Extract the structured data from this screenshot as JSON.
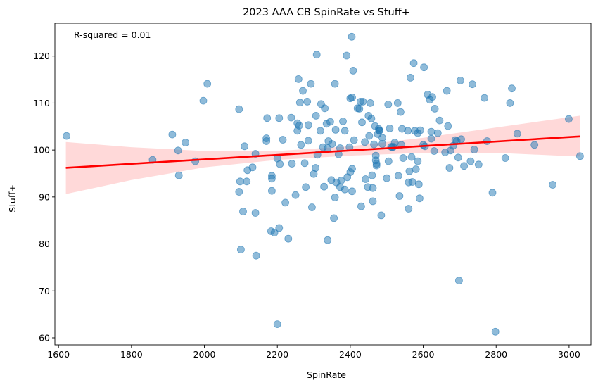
{
  "chart_data": {
    "type": "scatter",
    "title": "2023 AAA CB SpinRate vs Stuff+",
    "xlabel": "SpinRate",
    "ylabel": "Stuff+",
    "xlim": [
      1590,
      3060
    ],
    "ylim": [
      58.5,
      127
    ],
    "xticks": [
      1600,
      1800,
      2000,
      2200,
      2400,
      2600,
      2800,
      3000
    ],
    "yticks": [
      60,
      70,
      80,
      90,
      100,
      110,
      120
    ],
    "annotation": "R-squared = 0.01",
    "colors": {
      "points": "#1f77b4",
      "fit_line": "#ff0000",
      "ci_band": "#ff0000"
    },
    "regression": {
      "x": [
        1620,
        3030
      ],
      "y": [
        96.2,
        102.9
      ]
    },
    "confidence_band": {
      "x": [
        1620,
        1800,
        2000,
        2200,
        2400,
        2600,
        2800,
        3030
      ],
      "lower": [
        90.6,
        93.6,
        96.3,
        97.9,
        98.8,
        99.4,
        99.4,
        98.6
      ],
      "upper": [
        101.7,
        100.6,
        99.8,
        99.8,
        100.8,
        102.6,
        104.8,
        107.3
      ]
    },
    "points": [
      [
        1622,
        103
      ],
      [
        1858,
        97.9
      ],
      [
        1912,
        103.3
      ],
      [
        1928,
        99.9
      ],
      [
        1930,
        94.6
      ],
      [
        1948,
        101.6
      ],
      [
        1975,
        97.6
      ],
      [
        1997,
        110.5
      ],
      [
        2008,
        114.1
      ],
      [
        2095,
        108.7
      ],
      [
        2095,
        91.1
      ],
      [
        2098,
        93.3
      ],
      [
        2100,
        78.8
      ],
      [
        2106,
        86.9
      ],
      [
        2110,
        100.8
      ],
      [
        2116,
        93.3
      ],
      [
        2118,
        95.7
      ],
      [
        2132,
        96.3
      ],
      [
        2140,
        86.6
      ],
      [
        2140,
        99.2
      ],
      [
        2142,
        77.5
      ],
      [
        2170,
        102.5
      ],
      [
        2170,
        101.9
      ],
      [
        2172,
        106.8
      ],
      [
        2183,
        82.7
      ],
      [
        2185,
        94.5
      ],
      [
        2185,
        91.3
      ],
      [
        2185,
        93.9
      ],
      [
        2192,
        82.4
      ],
      [
        2200,
        98.2
      ],
      [
        2205,
        106.8
      ],
      [
        2205,
        83.4
      ],
      [
        2207,
        97
      ],
      [
        2200,
        62.9
      ],
      [
        2215,
        102.2
      ],
      [
        2222,
        88.8
      ],
      [
        2230,
        81.1
      ],
      [
        2238,
        106.9
      ],
      [
        2240,
        97.1
      ],
      [
        2250,
        90.4
      ],
      [
        2255,
        104.1
      ],
      [
        2255,
        105.7
      ],
      [
        2258,
        115.1
      ],
      [
        2260,
        105.2
      ],
      [
        2262,
        110.1
      ],
      [
        2265,
        101.1
      ],
      [
        2270,
        112.6
      ],
      [
        2275,
        97.2
      ],
      [
        2278,
        92.1
      ],
      [
        2282,
        110.3
      ],
      [
        2285,
        102
      ],
      [
        2285,
        105.3
      ],
      [
        2292,
        114.1
      ],
      [
        2295,
        87.8
      ],
      [
        2300,
        94.9
      ],
      [
        2305,
        96.2
      ],
      [
        2306,
        107.3
      ],
      [
        2308,
        120.3
      ],
      [
        2310,
        99
      ],
      [
        2318,
        104.1
      ],
      [
        2320,
        109.8
      ],
      [
        2325,
        100.6
      ],
      [
        2328,
        92.2
      ],
      [
        2330,
        108.9
      ],
      [
        2335,
        105.6
      ],
      [
        2338,
        80.8
      ],
      [
        2338,
        100.4
      ],
      [
        2340,
        101.9
      ],
      [
        2345,
        106
      ],
      [
        2348,
        93.6
      ],
      [
        2350,
        101.3
      ],
      [
        2355,
        85.5
      ],
      [
        2358,
        114.1
      ],
      [
        2358,
        89.9
      ],
      [
        2360,
        104.3
      ],
      [
        2362,
        93.1
      ],
      [
        2368,
        99.1
      ],
      [
        2372,
        100.4
      ],
      [
        2372,
        92.1
      ],
      [
        2375,
        93.5
      ],
      [
        2380,
        106.1
      ],
      [
        2385,
        104.1
      ],
      [
        2385,
        91.6
      ],
      [
        2390,
        120.1
      ],
      [
        2392,
        94.2
      ],
      [
        2398,
        100.6
      ],
      [
        2400,
        111
      ],
      [
        2400,
        95.3
      ],
      [
        2404,
        124.1
      ],
      [
        2405,
        111.2
      ],
      [
        2405,
        96
      ],
      [
        2405,
        91.2
      ],
      [
        2408,
        116.9
      ],
      [
        2410,
        102.1
      ],
      [
        2420,
        108.9
      ],
      [
        2425,
        108.8
      ],
      [
        2428,
        110.3
      ],
      [
        2430,
        88
      ],
      [
        2432,
        105.9
      ],
      [
        2435,
        110.3
      ],
      [
        2440,
        101.7
      ],
      [
        2442,
        93.8
      ],
      [
        2448,
        92.1
      ],
      [
        2450,
        107.3
      ],
      [
        2452,
        103
      ],
      [
        2455,
        110
      ],
      [
        2458,
        106.7
      ],
      [
        2460,
        94.6
      ],
      [
        2462,
        91.9
      ],
      [
        2462,
        89.1
      ],
      [
        2465,
        101.2
      ],
      [
        2468,
        105.1
      ],
      [
        2470,
        98.8
      ],
      [
        2470,
        97.8
      ],
      [
        2472,
        96.7
      ],
      [
        2472,
        97.1
      ],
      [
        2475,
        103.4
      ],
      [
        2478,
        104.5
      ],
      [
        2480,
        104.1
      ],
      [
        2480,
        104.2
      ],
      [
        2485,
        86.1
      ],
      [
        2488,
        102.6
      ],
      [
        2488,
        101.3
      ],
      [
        2500,
        94
      ],
      [
        2504,
        109.7
      ],
      [
        2505,
        97.6
      ],
      [
        2508,
        104.6
      ],
      [
        2512,
        100.7
      ],
      [
        2515,
        100.6
      ],
      [
        2518,
        100.7
      ],
      [
        2522,
        101.6
      ],
      [
        2530,
        110
      ],
      [
        2532,
        94.5
      ],
      [
        2535,
        90.2
      ],
      [
        2538,
        108.1
      ],
      [
        2540,
        101.1
      ],
      [
        2542,
        104.5
      ],
      [
        2545,
        98.3
      ],
      [
        2558,
        104.1
      ],
      [
        2560,
        93.1
      ],
      [
        2560,
        87.5
      ],
      [
        2562,
        95.5
      ],
      [
        2565,
        115.4
      ],
      [
        2568,
        98.5
      ],
      [
        2570,
        93.2
      ],
      [
        2574,
        118.5
      ],
      [
        2577,
        104.1
      ],
      [
        2580,
        95.9
      ],
      [
        2585,
        103.6
      ],
      [
        2585,
        97.6
      ],
      [
        2588,
        92.7
      ],
      [
        2590,
        89.7
      ],
      [
        2592,
        104.2
      ],
      [
        2600,
        101.1
      ],
      [
        2602,
        117.6
      ],
      [
        2605,
        100.8
      ],
      [
        2612,
        111.8
      ],
      [
        2618,
        110.7
      ],
      [
        2622,
        103.9
      ],
      [
        2622,
        102.4
      ],
      [
        2625,
        111.3
      ],
      [
        2630,
        99.8
      ],
      [
        2632,
        108.8
      ],
      [
        2640,
        103.6
      ],
      [
        2645,
        106.3
      ],
      [
        2660,
        99.5
      ],
      [
        2665,
        112.6
      ],
      [
        2668,
        105.1
      ],
      [
        2672,
        96.2
      ],
      [
        2675,
        99.9
      ],
      [
        2682,
        100.9
      ],
      [
        2688,
        102.1
      ],
      [
        2692,
        101.9
      ],
      [
        2696,
        98.4
      ],
      [
        2698,
        72.2
      ],
      [
        2702,
        114.8
      ],
      [
        2704,
        102.3
      ],
      [
        2712,
        96.6
      ],
      [
        2730,
        97.6
      ],
      [
        2735,
        114
      ],
      [
        2740,
        100.1
      ],
      [
        2752,
        96.9
      ],
      [
        2768,
        111.1
      ],
      [
        2775,
        101.9
      ],
      [
        2790,
        90.9
      ],
      [
        2798,
        61.3
      ],
      [
        2825,
        98.3
      ],
      [
        2838,
        110
      ],
      [
        2843,
        113.1
      ],
      [
        2858,
        103.5
      ],
      [
        2905,
        101.1
      ],
      [
        2955,
        92.6
      ],
      [
        2999,
        106.6
      ],
      [
        3030,
        98.7
      ]
    ]
  }
}
